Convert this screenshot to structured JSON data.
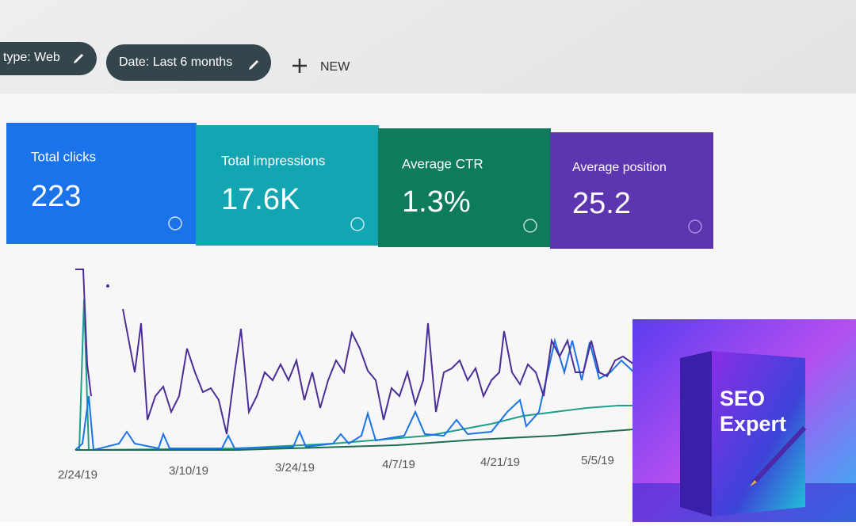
{
  "toolbar": {
    "chips": [
      "type: Web",
      "Date: Last 6 months"
    ],
    "new_button": "NEW"
  },
  "metrics": [
    {
      "label": "Total clicks",
      "value": "223"
    },
    {
      "label": "Total impressions",
      "value": "17.6K"
    },
    {
      "label": "Average CTR",
      "value": "1.3%"
    },
    {
      "label": "Average position",
      "value": "25.2"
    }
  ],
  "chart": {
    "x_labels": [
      "2/24/19",
      "3/10/19",
      "3/24/19",
      "4/7/19",
      "4/21/19",
      "5/5/19"
    ]
  },
  "promo": {
    "title": "SEO Expert"
  }
}
